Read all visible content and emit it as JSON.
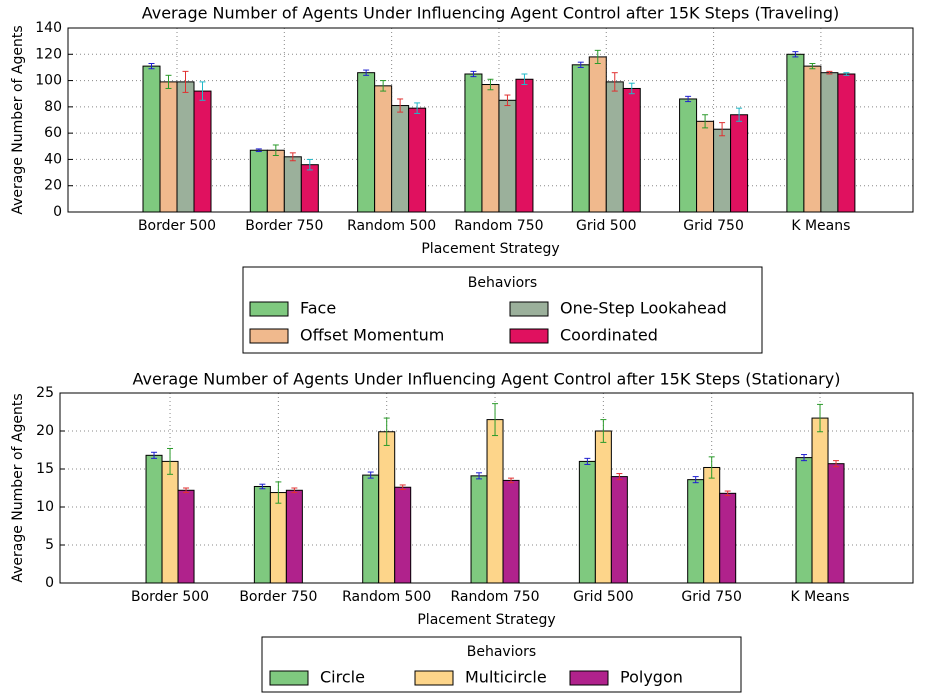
{
  "chart_data": [
    {
      "type": "bar",
      "title": "Average Number of Agents Under Influencing Agent Control after 15K Steps (Traveling)",
      "x_label": "Placement Strategy",
      "y_label": "Average Number of Agents",
      "categories": [
        "Border 500",
        "Border 750",
        "Random 500",
        "Random 750",
        "Grid 500",
        "Grid 750",
        "K Means"
      ],
      "series": [
        {
          "name": "Face",
          "color": "#7fc97f",
          "error_color": "#1f1fd0",
          "values": [
            111,
            47,
            106,
            105,
            112,
            86,
            120
          ],
          "errors": [
            2,
            1,
            2,
            2,
            2,
            2,
            2
          ]
        },
        {
          "name": "Offset Momentum",
          "color": "#f0b98d",
          "error_color": "#2a9a2a",
          "values": [
            99,
            47,
            96,
            97,
            118,
            69,
            111
          ],
          "errors": [
            5,
            4,
            4,
            4,
            5,
            5,
            2
          ]
        },
        {
          "name": "One-Step Lookahead",
          "color": "#9bb09b",
          "error_color": "#e03030",
          "values": [
            99,
            42,
            81,
            85,
            99,
            63,
            106
          ],
          "errors": [
            8,
            3,
            5,
            4,
            7,
            5,
            1
          ]
        },
        {
          "name": "Coordinated",
          "color": "#e0115f",
          "error_color": "#20b8c8",
          "values": [
            92,
            36,
            79,
            101,
            94,
            74,
            105
          ],
          "errors": [
            7,
            4,
            4,
            4,
            4,
            5,
            1
          ]
        }
      ],
      "ylim": [
        0,
        140
      ],
      "yticks": [
        0,
        20,
        40,
        60,
        80,
        100,
        120,
        140
      ],
      "grid": true,
      "legend_title": "Behaviors",
      "legend_position": "below",
      "legend_columns": 2
    },
    {
      "type": "bar",
      "title": "Average Number of Agents Under Influencing Agent Control after 15K Steps (Stationary)",
      "x_label": "Placement Strategy",
      "y_label": "Average Number of Agents",
      "categories": [
        "Border 500",
        "Border 750",
        "Random 500",
        "Random 750",
        "Grid 500",
        "Grid 750",
        "K Means"
      ],
      "series": [
        {
          "name": "Circle",
          "color": "#7fc97f",
          "error_color": "#1f1fd0",
          "values": [
            16.8,
            12.7,
            14.2,
            14.1,
            16.0,
            13.6,
            16.5
          ],
          "errors": [
            0.4,
            0.3,
            0.4,
            0.4,
            0.4,
            0.4,
            0.4
          ]
        },
        {
          "name": "Multicircle",
          "color": "#fdd58a",
          "error_color": "#2a9a2a",
          "values": [
            16.0,
            11.9,
            19.9,
            21.5,
            20.0,
            15.2,
            21.7
          ],
          "errors": [
            1.7,
            1.4,
            1.8,
            2.1,
            1.5,
            1.4,
            1.8
          ]
        },
        {
          "name": "Polygon",
          "color": "#b0228c",
          "error_color": "#e03030",
          "values": [
            12.2,
            12.2,
            12.6,
            13.5,
            14.0,
            11.8,
            15.7
          ],
          "errors": [
            0.3,
            0.3,
            0.3,
            0.3,
            0.4,
            0.3,
            0.4
          ]
        }
      ],
      "ylim": [
        0,
        25
      ],
      "yticks": [
        0,
        5,
        10,
        15,
        20,
        25
      ],
      "grid": true,
      "legend_title": "Behaviors",
      "legend_position": "below",
      "legend_columns": 3
    }
  ]
}
